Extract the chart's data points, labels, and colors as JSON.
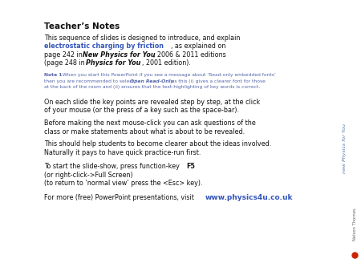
{
  "bg_color": "#ffffff",
  "title": "Teacher’s Notes",
  "para1_normal1": "This sequence of slides is designed to introduce, and explain",
  "para1_blue": "electrostatic charging by friction",
  "para1_normal2": ", as explained on",
  "para1_normal3": "page 242 in ",
  "para1_bold_italic1": "New Physics for You",
  "para1_normal4": ", 2006 & 2011 editions",
  "para1_normal5": "(page 248 in ",
  "para1_bold_italic2": "Physics for You",
  "para1_normal6": ", 2001 edition).",
  "note_bold": "Note 1",
  "note_line1_after": " When you start this PowerPoint if you see a message about ‘Read-only embedded fonts’",
  "note_line2_pre": "then you are recommended to select ‘",
  "note_bold_italic": "Open Read-Only",
  "note_line2_post": "’ as this (i) gives a clearer font for those",
  "note_line3": "at the back of the room and (ii) ensures that the text-highlighting of key words is correct.",
  "para2a": "On each slide the key points are revealed step by step, at the click",
  "para2b": "of your mouse (or the press of a key such as the space-bar).",
  "para3a": "Before making the next mouse-click you can ask questions of the",
  "para3b": "class or make statements about what is about to be revealed.",
  "para4": "This should help students to become clearer about the ideas involved.",
  "para5": "Naturally it pays to have quick practice-run first.",
  "para6a_pre": "To start the slide-show, press function-key ",
  "para6a_bold": "F5",
  "para6b": "(or right-click->Full Screen)",
  "para6c": "(to return to ‘normal view’ press the <Esc> key).",
  "para7_pre": "For more (free) PowerPoint presentations, visit   ",
  "para7_url": "www.physics4u.co.uk",
  "sidebar_text": "new Physics for You",
  "sidebar_color": "#5577aa",
  "blue_color": "#3355bb",
  "note_color": "#5566aa",
  "black_color": "#111111",
  "title_fs": 7.5,
  "body_fs": 5.8,
  "note_fs": 4.3,
  "url_fs": 6.5
}
